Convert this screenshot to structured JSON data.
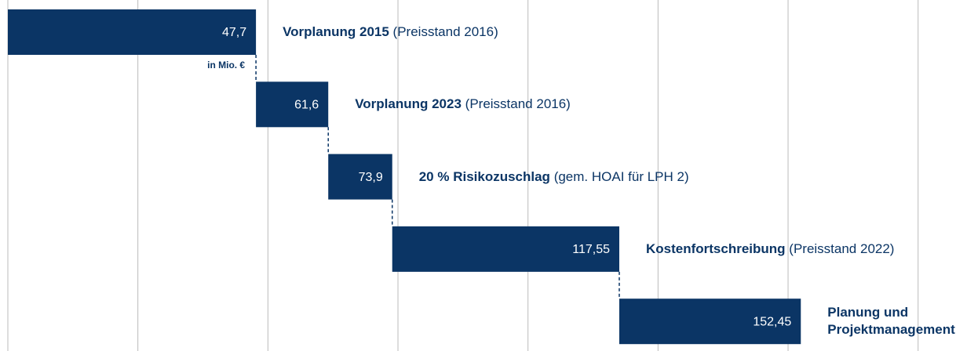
{
  "chart_data": {
    "type": "waterfall",
    "categories": [
      "Vorplanung 2015",
      "Vorplanung 2023",
      "20 % Risikozuschlag",
      "Kostenfortschreibung",
      "Planung und Projektmanagement"
    ],
    "category_notes": [
      "(Preisstand 2016)",
      "(Preisstand 2016)",
      "(gem. HOAI für LPH 2)",
      "(Preisstand 2022)",
      null
    ],
    "values": [
      47.7,
      61.6,
      73.9,
      117.55,
      152.45
    ],
    "value_labels": [
      "47,7",
      "61,6",
      "73,9",
      "117,55",
      "152,45"
    ],
    "unit_label": "in Mio. €",
    "color": "#0b3565",
    "xlim": [
      0,
      184.4
    ],
    "xticks": [
      0,
      25,
      50,
      75,
      100,
      125,
      150,
      175
    ],
    "grid": true
  }
}
